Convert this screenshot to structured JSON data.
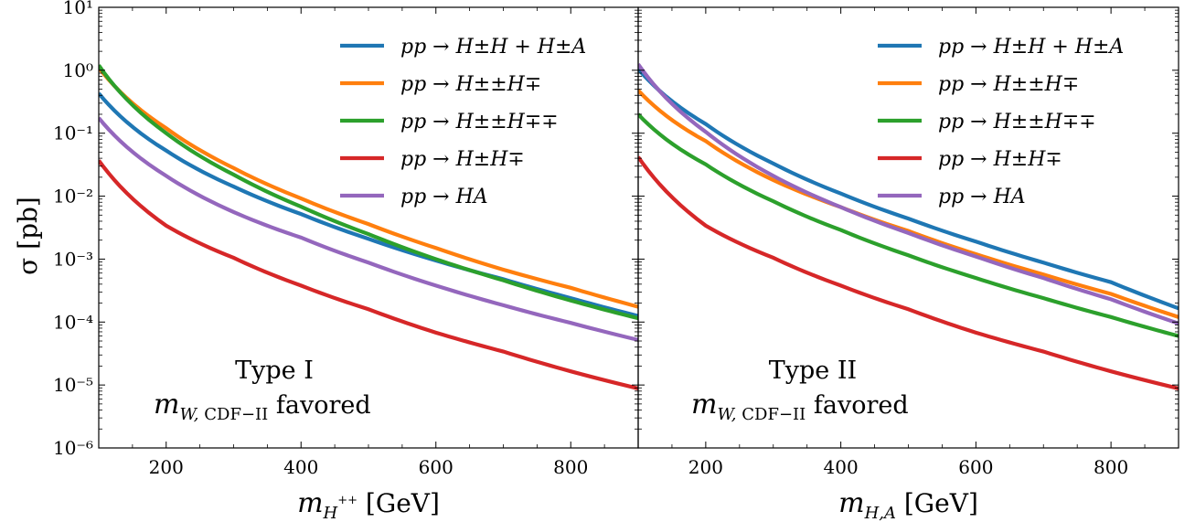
{
  "shared_ylabel": "σ [pb]",
  "chart_data": [
    {
      "type": "line",
      "panel": "Type I",
      "annotation_line1": "Type I",
      "annotation_line2": "m_{W, CDF−II} favored",
      "annotation_math": "mW,CDF−II",
      "annotation_suffix": "favored",
      "xlabel": "m_{H++} [GeV]",
      "xlabel_main": "m",
      "xlabel_sub": "H",
      "xlabel_sup": "++",
      "xlabel_unit": "[GeV]",
      "ylabel": "σ [pb]",
      "xlim": [
        100,
        900
      ],
      "ylim": [
        1e-06,
        10
      ],
      "yscale": "log",
      "xticks": [
        200,
        400,
        600,
        800
      ],
      "yticks": [
        1e-06,
        1e-05,
        0.0001,
        0.001,
        0.01,
        0.1,
        1,
        10
      ],
      "ytick_labels": [
        "10⁻⁶",
        "10⁻⁵",
        "10⁻⁴",
        "10⁻³",
        "10⁻²",
        "10⁻¹",
        "10⁰",
        "10¹"
      ],
      "legend_position": "top-right",
      "series": [
        {
          "name": "pp → H±H + H±A",
          "color": "#1f77b4",
          "x": [
            100,
            200,
            300,
            400,
            500,
            600,
            700,
            800,
            900
          ],
          "y": [
            0.43,
            0.053,
            0.0142,
            0.0052,
            0.0021,
            0.00095,
            0.00048,
            0.00024,
            0.000125
          ]
        },
        {
          "name": "pp → H±±H∓",
          "color": "#ff7f0e",
          "x": [
            100,
            200,
            300,
            400,
            500,
            600,
            700,
            800,
            900
          ],
          "y": [
            1.1,
            0.12,
            0.028,
            0.0092,
            0.0036,
            0.0015,
            0.00068,
            0.00035,
            0.000175
          ]
        },
        {
          "name": "pp → H±±H∓∓",
          "color": "#2ca02c",
          "x": [
            100,
            200,
            300,
            400,
            500,
            600,
            700,
            800,
            900
          ],
          "y": [
            1.2,
            0.1,
            0.022,
            0.0068,
            0.0025,
            0.001,
            0.00046,
            0.00022,
            0.000115
          ]
        },
        {
          "name": "pp → H±H∓",
          "color": "#d62728",
          "x": [
            100,
            200,
            300,
            400,
            500,
            600,
            700,
            800,
            900
          ],
          "y": [
            0.037,
            0.0034,
            0.00105,
            0.00038,
            0.00016,
            6.8e-05,
            3.4e-05,
            1.65e-05,
            8.8e-06
          ]
        },
        {
          "name": "pp → HA",
          "color": "#9467bd",
          "x": [
            100,
            200,
            300,
            400,
            500,
            600,
            700,
            800,
            900
          ],
          "y": [
            0.175,
            0.021,
            0.0056,
            0.0022,
            0.00088,
            0.00038,
            0.000185,
            9.7e-05,
            5.2e-05
          ]
        }
      ]
    },
    {
      "type": "line",
      "panel": "Type II",
      "annotation_line1": "Type II",
      "annotation_line2": "m_{W, CDF−II} favored",
      "annotation_math": "mW,CDF−II",
      "annotation_suffix": "favored",
      "xlabel": "m_{H,A} [GeV]",
      "xlabel_main": "m",
      "xlabel_sub": "H,A",
      "xlabel_sup": "",
      "xlabel_unit": "[GeV]",
      "xlim": [
        100,
        900
      ],
      "ylim": [
        1e-06,
        10
      ],
      "yscale": "log",
      "xticks": [
        200,
        400,
        600,
        800
      ],
      "legend_position": "top-right",
      "series": [
        {
          "name": "pp → H±H + H±A",
          "color": "#1f77b4",
          "x": [
            100,
            200,
            300,
            400,
            500,
            600,
            700,
            800,
            900
          ],
          "y": [
            1.05,
            0.14,
            0.033,
            0.011,
            0.0044,
            0.0019,
            0.00088,
            0.00043,
            0.000165
          ]
        },
        {
          "name": "pp → H±±H∓",
          "color": "#ff7f0e",
          "x": [
            100,
            200,
            300,
            400,
            500,
            600,
            700,
            800,
            900
          ],
          "y": [
            0.48,
            0.075,
            0.018,
            0.0067,
            0.0028,
            0.0012,
            0.00057,
            0.00028,
            0.00012
          ]
        },
        {
          "name": "pp → H±±H∓∓",
          "color": "#2ca02c",
          "x": [
            100,
            200,
            300,
            400,
            500,
            600,
            700,
            800,
            900
          ],
          "y": [
            0.2,
            0.032,
            0.0083,
            0.0029,
            0.00115,
            0.0005,
            0.00024,
            0.00012,
            6e-05
          ]
        },
        {
          "name": "pp → H±H∓",
          "color": "#d62728",
          "x": [
            100,
            200,
            300,
            400,
            500,
            600,
            700,
            800,
            900
          ],
          "y": [
            0.042,
            0.0034,
            0.00105,
            0.00038,
            0.00016,
            6.8e-05,
            3.4e-05,
            1.65e-05,
            8.8e-06
          ]
        },
        {
          "name": "pp → HA",
          "color": "#9467bd",
          "x": [
            100,
            200,
            300,
            400,
            500,
            600,
            700,
            800,
            900
          ],
          "y": [
            1.25,
            0.105,
            0.021,
            0.0067,
            0.0026,
            0.0011,
            0.0005,
            0.00023,
            9.5e-05
          ]
        }
      ]
    }
  ]
}
